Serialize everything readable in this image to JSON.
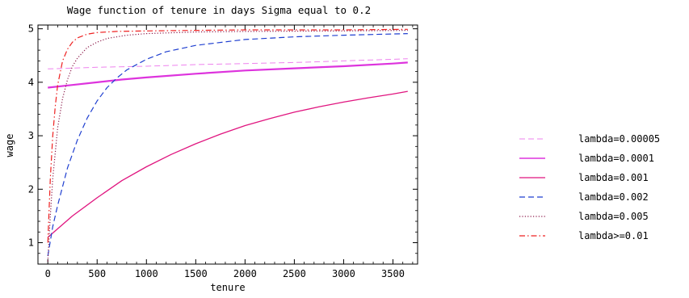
{
  "chart_data": {
    "type": "line",
    "title": "Wage function of tenure in days Sigma equal to 0.2",
    "xlabel": "tenure",
    "ylabel": "wage",
    "xlim": [
      -100,
      3750
    ],
    "ylim": [
      0.6,
      5.07
    ],
    "xticks": [
      0,
      500,
      1000,
      1500,
      2000,
      2500,
      3000,
      3500
    ],
    "yticks": [
      1,
      2,
      3,
      4,
      5
    ],
    "grid": false,
    "legend_position": "right",
    "series": [
      {
        "name": "lambda=0.00005",
        "color": "#ee82ee",
        "dash": "dashed",
        "width": 1,
        "x": [
          0,
          500,
          1000,
          1500,
          2000,
          2500,
          3000,
          3500,
          3650
        ],
        "y": [
          4.25,
          4.28,
          4.3,
          4.33,
          4.35,
          4.37,
          4.4,
          4.43,
          4.44
        ]
      },
      {
        "name": "lambda=0.0001",
        "color": "#dd33dd",
        "dash": "solid",
        "width": 2.2,
        "x": [
          0,
          250,
          500,
          750,
          1000,
          1500,
          2000,
          2500,
          3000,
          3500,
          3650
        ],
        "y": [
          3.9,
          3.95,
          4.0,
          4.05,
          4.09,
          4.16,
          4.22,
          4.26,
          4.3,
          4.35,
          4.37
        ]
      },
      {
        "name": "lambda=0.001",
        "color": "#e0157f",
        "dash": "solid",
        "width": 1.3,
        "x": [
          0,
          250,
          500,
          750,
          1000,
          1250,
          1500,
          1750,
          2000,
          2250,
          2500,
          2750,
          3000,
          3250,
          3500,
          3650
        ],
        "y": [
          1.1,
          1.5,
          1.84,
          2.16,
          2.42,
          2.65,
          2.85,
          3.03,
          3.19,
          3.32,
          3.44,
          3.54,
          3.63,
          3.71,
          3.78,
          3.83
        ]
      },
      {
        "name": "lambda=0.002",
        "color": "#1f3fd0",
        "dash": "dashed",
        "width": 1.2,
        "x": [
          0,
          50,
          100,
          150,
          200,
          300,
          400,
          500,
          600,
          700,
          800,
          1000,
          1200,
          1500,
          2000,
          2500,
          3000,
          3650
        ],
        "y": [
          0.75,
          1.3,
          1.7,
          2.05,
          2.4,
          2.92,
          3.33,
          3.65,
          3.9,
          4.08,
          4.23,
          4.43,
          4.57,
          4.69,
          4.8,
          4.85,
          4.88,
          4.91
        ]
      },
      {
        "name": "lambda=0.005",
        "color": "#8c1a4a",
        "dash": "dotted",
        "width": 1.2,
        "x": [
          0,
          25,
          50,
          100,
          150,
          200,
          250,
          300,
          400,
          500,
          600,
          800,
          1000,
          1500,
          2000,
          3000,
          3650
        ],
        "y": [
          0.65,
          1.5,
          2.2,
          3.15,
          3.7,
          4.05,
          4.3,
          4.45,
          4.65,
          4.75,
          4.82,
          4.88,
          4.91,
          4.94,
          4.95,
          4.96,
          4.97
        ]
      },
      {
        "name": "lambda>=0.01",
        "color": "#ee2020",
        "dash": "dashdot",
        "width": 1.2,
        "x": [
          0,
          25,
          50,
          75,
          100,
          150,
          200,
          250,
          300,
          400,
          500,
          700,
          1000,
          1500,
          2000,
          3000,
          3650
        ],
        "y": [
          1.0,
          2.2,
          3.0,
          3.55,
          3.95,
          4.4,
          4.62,
          4.75,
          4.83,
          4.9,
          4.93,
          4.95,
          4.96,
          4.97,
          4.98,
          4.98,
          4.99
        ]
      }
    ]
  }
}
